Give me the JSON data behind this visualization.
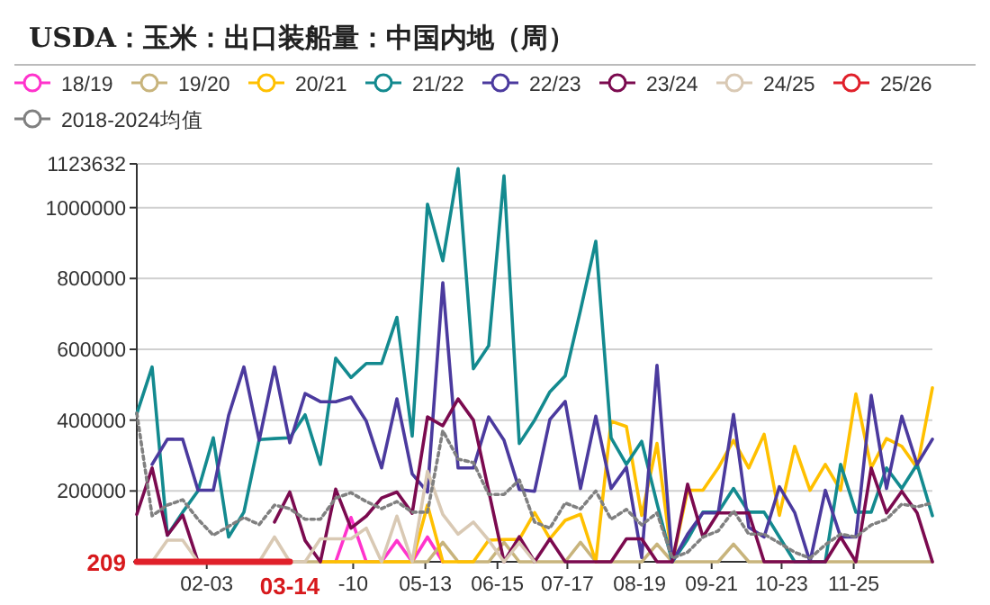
{
  "chart_data": {
    "type": "line",
    "title": "USDA：玉米：出口装船量：中国内地（周）",
    "x": [
      "--01-02",
      "--01-09",
      "--01-16",
      "--01-23",
      "--01-30",
      "--02-06",
      "--02-13",
      "--02-20",
      "--02-27",
      "--03-05",
      "--03-12",
      "--03-19",
      "--03-26",
      "--04-02",
      "--04-09",
      "--04-16",
      "--04-23",
      "--04-30",
      "--05-07",
      "--05-14",
      "--05-21",
      "--05-28",
      "--06-04",
      "--06-11",
      "--06-18",
      "--06-25",
      "--07-02",
      "--07-09",
      "--07-16",
      "--07-23",
      "--07-30",
      "--08-06",
      "--08-13",
      "--08-20",
      "--08-27",
      "--09-03",
      "--09-10",
      "--09-17",
      "--09-24",
      "--10-01",
      "--10-08",
      "--10-15",
      "--10-22",
      "--10-29",
      "--11-05",
      "--11-12",
      "--11-19",
      "--11-26",
      "--12-03",
      "--12-10",
      "--12-17",
      "--12-24",
      "--12-31"
    ],
    "xlim": [
      "--01-02",
      "--12-31"
    ],
    "xticks": [
      {
        "value": "--02-03",
        "label": "02-03"
      },
      {
        "value": "--04-10",
        "label": "-10"
      },
      {
        "value": "--05-13",
        "label": "05-13"
      },
      {
        "value": "--06-15",
        "label": "06-15"
      },
      {
        "value": "--07-17",
        "label": "07-17"
      },
      {
        "value": "--08-19",
        "label": "08-19"
      },
      {
        "value": "--09-21",
        "label": "09-21"
      },
      {
        "value": "--10-23",
        "label": "10-23"
      },
      {
        "value": "--11-25",
        "label": "11-25"
      }
    ],
    "ylim": [
      0,
      1123632
    ],
    "yticks": [
      {
        "value": 0,
        "label": null
      },
      200000,
      400000,
      600000,
      800000,
      1000000,
      1123632
    ],
    "grid": "y",
    "legend": "top",
    "annotations": [
      "209",
      "03-14"
    ],
    "series": [
      {
        "name": "18/19",
        "color": "#ff33cc",
        "values": [
          null,
          null,
          null,
          null,
          null,
          null,
          null,
          null,
          null,
          null,
          null,
          null,
          null,
          0,
          125000,
          0,
          0,
          60000,
          0,
          70000,
          0,
          null,
          null,
          null,
          null,
          null,
          null,
          null,
          null,
          null,
          null,
          null,
          null,
          null,
          null,
          null,
          null,
          null,
          null,
          null,
          null,
          null,
          null,
          null,
          null,
          null,
          null,
          null,
          null,
          null,
          null,
          null,
          null
        ]
      },
      {
        "name": "19/20",
        "color": "#c8b47c",
        "values": [
          0,
          0,
          0,
          0,
          0,
          0,
          0,
          0,
          0,
          0,
          0,
          0,
          0,
          0,
          0,
          0,
          0,
          0,
          0,
          0,
          55000,
          0,
          0,
          0,
          55000,
          0,
          0,
          0,
          0,
          55000,
          0,
          0,
          0,
          0,
          50000,
          0,
          0,
          0,
          0,
          50000,
          0,
          0,
          0,
          0,
          0,
          0,
          0,
          0,
          0,
          0,
          0,
          0,
          0
        ]
      },
      {
        "name": "20/21",
        "color": "#ffc000",
        "values": [
          null,
          null,
          null,
          null,
          null,
          null,
          null,
          null,
          null,
          null,
          null,
          null,
          0,
          0,
          0,
          0,
          0,
          0,
          0,
          160000,
          0,
          0,
          0,
          61000,
          63000,
          63000,
          139000,
          65000,
          117000,
          134000,
          0,
          397000,
          382000,
          131000,
          334000,
          0,
          202000,
          202000,
          265000,
          343000,
          265000,
          360000,
          131000,
          326000,
          202000,
          275000,
          202000,
          474000,
          265000,
          348000,
          326000,
          265000,
          491000
        ]
      },
      {
        "name": "21/22",
        "color": "#138a8f",
        "values": [
          418000,
          550000,
          75000,
          140000,
          200000,
          350000,
          70000,
          140000,
          345000,
          348000,
          350000,
          415000,
          275000,
          575000,
          520000,
          560000,
          560000,
          690000,
          355000,
          1010000,
          850000,
          1110000,
          545000,
          610000,
          1090000,
          334000,
          400000,
          480000,
          525000,
          710000,
          905000,
          350000,
          275000,
          340000,
          165000,
          0,
          63000,
          140000,
          140000,
          207000,
          140000,
          140000,
          70000,
          0,
          0,
          0,
          275000,
          140000,
          140000,
          265000,
          207000,
          275000,
          130000
        ]
      },
      {
        "name": "22/23",
        "color": "#4b3a9e",
        "values": [
          null,
          275000,
          346000,
          346000,
          202000,
          202000,
          413000,
          550000,
          343000,
          550000,
          336000,
          475000,
          452000,
          452000,
          465000,
          397000,
          265000,
          460000,
          248000,
          197000,
          788000,
          265000,
          265000,
          409000,
          343000,
          204000,
          199000,
          402000,
          453000,
          207000,
          411000,
          207000,
          267000,
          12000,
          555000,
          0,
          78000,
          138000,
          138000,
          416000,
          97000,
          70000,
          212000,
          139000,
          0,
          202000,
          70000,
          70000,
          470000,
          207000,
          411000,
          275000,
          346000
        ]
      },
      {
        "name": "23/24",
        "color": "#7b0a4f",
        "values": [
          134000,
          265000,
          75000,
          132000,
          0,
          null,
          null,
          null,
          null,
          112000,
          197000,
          60000,
          0,
          205000,
          95000,
          129000,
          180000,
          197000,
          137000,
          409000,
          384000,
          460000,
          400000,
          200000,
          0,
          71000,
          0,
          65000,
          0,
          0,
          0,
          0,
          65000,
          65000,
          0,
          0,
          219000,
          70000,
          138000,
          138000,
          138000,
          0,
          0,
          0,
          0,
          0,
          70000,
          0,
          265000,
          138000,
          199000,
          138000,
          0
        ]
      },
      {
        "name": "24/25",
        "color": "#d9c9b4",
        "values": [
          null,
          0,
          61000,
          61000,
          0,
          0,
          0,
          0,
          0,
          70000,
          0,
          0,
          65000,
          65000,
          65000,
          95000,
          0,
          129000,
          0,
          256000,
          134000,
          78000,
          112000,
          61000,
          0,
          54000,
          0,
          null,
          null,
          null,
          null,
          null,
          null,
          null,
          null,
          null,
          null,
          null,
          null,
          null,
          null,
          null,
          null,
          null,
          null,
          null,
          null,
          null,
          null,
          null,
          null,
          null,
          null
        ]
      },
      {
        "name": "25/26",
        "color": "#e0202a",
        "values": [
          0,
          0,
          0,
          0,
          0,
          0,
          0,
          0,
          0,
          0,
          209,
          null,
          null,
          null,
          null,
          null,
          null,
          null,
          null,
          null,
          null,
          null,
          null,
          null,
          null,
          null,
          null,
          null,
          null,
          null,
          null,
          null,
          null,
          null,
          null,
          null,
          null,
          null,
          null,
          null,
          null,
          null,
          null,
          null,
          null,
          null,
          null,
          null,
          null,
          null,
          null,
          null,
          null
        ]
      },
      {
        "name": "2018-2024均值",
        "color": "#808080",
        "line_style": "dotted",
        "values": [
          420000,
          130000,
          160000,
          175000,
          120000,
          75000,
          100000,
          125000,
          105000,
          160000,
          150000,
          120000,
          120000,
          180000,
          195000,
          170000,
          150000,
          170000,
          140000,
          140000,
          370000,
          290000,
          280000,
          190000,
          190000,
          231000,
          112000,
          95000,
          166000,
          149000,
          200000,
          120000,
          148000,
          104000,
          138000,
          10000,
          27000,
          70000,
          87000,
          144000,
          78000,
          78000,
          53000,
          27000,
          10000,
          48000,
          78000,
          70000,
          104000,
          120000,
          163000,
          155000,
          166000
        ]
      }
    ]
  }
}
